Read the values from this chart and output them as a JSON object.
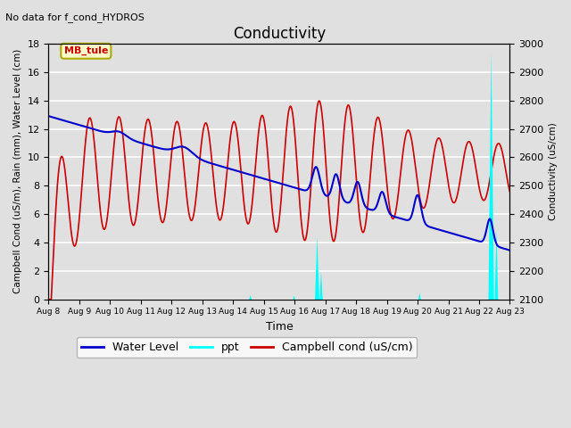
{
  "title": "Conductivity",
  "top_left_text": "No data for f_cond_HYDROS",
  "legend_box_text": "MB_tule",
  "xlabel": "Time",
  "ylabel_left": "Campbell Cond (uS/m), Rain (mm), Water Level (cm)",
  "ylabel_right": "Conductivity (uS/cm)",
  "ylim_left": [
    0,
    18
  ],
  "ylim_right": [
    2100,
    3000
  ],
  "x_tick_labels": [
    "Aug 8",
    "Aug 9",
    "Aug 10",
    "Aug 11",
    "Aug 12",
    "Aug 13",
    "Aug 14",
    "Aug 15",
    "Aug 16",
    "Aug 17",
    "Aug 18",
    "Aug 19",
    "Aug 20",
    "Aug 21",
    "Aug 22",
    "Aug 23"
  ],
  "bg_color": "#e0e0e0",
  "water_level_color": "#0000cc",
  "ppt_color": "#00ffff",
  "campbell_color": "#cc0000",
  "grid_color": "white",
  "legend_box_facecolor": "#ffffcc",
  "legend_box_edgecolor": "#aaaa00",
  "legend_box_textcolor": "#cc0000"
}
